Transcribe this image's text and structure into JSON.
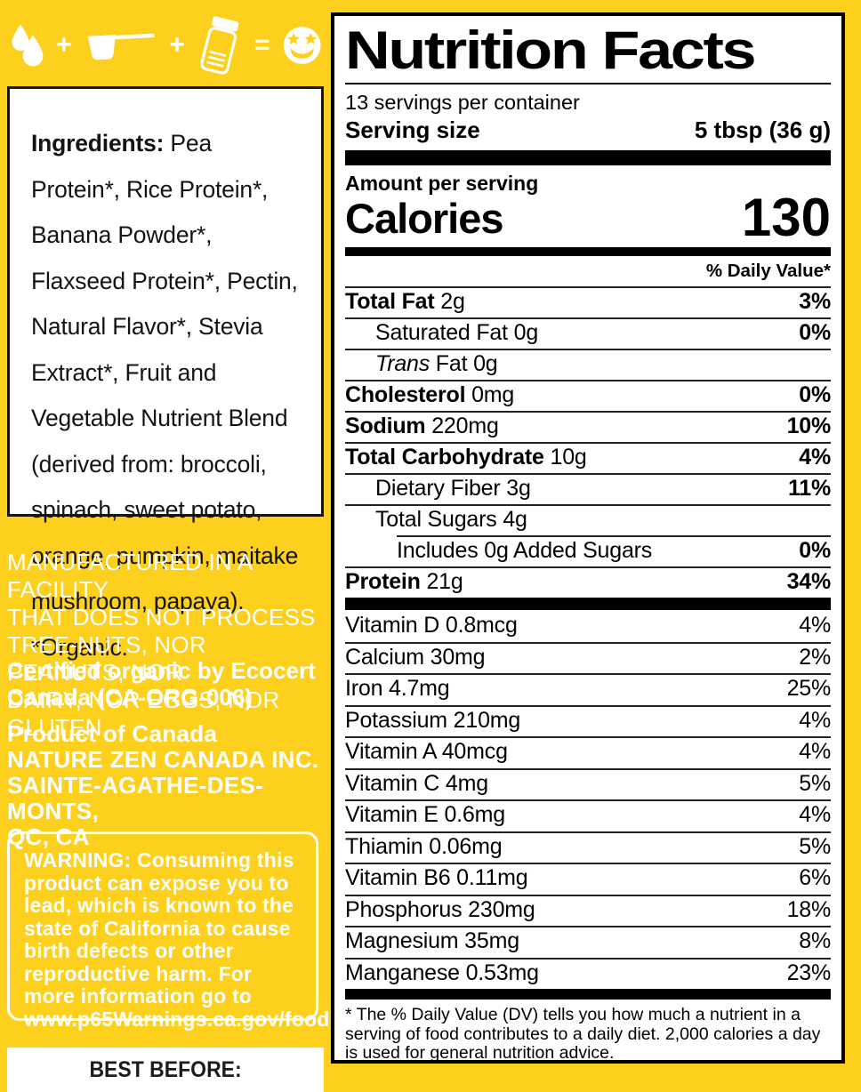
{
  "colors": {
    "background_yellow": "#FCD01C",
    "panel_background": "#FFFFFF",
    "panel_border": "#000000",
    "left_text_white": "#FFFFFF",
    "ingredients_text": "#141414"
  },
  "left": {
    "icon_equation": {
      "icons": [
        "water-drops-icon",
        "scoop-icon",
        "shaker-bottle-icon",
        "star-struck-emoji-icon"
      ],
      "plus": "+",
      "equals": "="
    },
    "ingredients_label": "Ingredients:",
    "ingredients_body": " Pea Protein*, Rice Protein*, Banana Powder*, Flaxseed Protein*, Pectin, Natural Flavor*, Stevia Extract*, Fruit and Vegetable Nutrient Blend (derived from: broccoli, spinach, sweet potato, orange, pumpkin, maitake mushroom, papaya). *Organic.",
    "facility_notice": "MANUFACTURED IN A FACILITY\nTHAT DOES NOT PROCESS\nTREE-NUTS, NOR PEANUTS, NOR\nDAIRY, NOR EGGS, NOR GLUTEN.",
    "certified": "Certified organic by Ecocert\nCanada (CA-ORG-006)",
    "product_block": "Product of Canada\nNATURE ZEN CANADA INC.\nSAINTE-AGATHE-DES-MONTS,\nQC, CA",
    "warning_label": "WARNING:",
    "warning_body": " Consuming this product can expose you to lead, which is known to the state of California to cause birth defects or other reproductive harm. For more information go to www.p65Warnings.ca.gov/food",
    "best_before": "BEST BEFORE:"
  },
  "nutrition": {
    "title": "Nutrition Facts",
    "servings_per_container": "13 servings per container",
    "serving_size_label": "Serving size",
    "serving_size_value": "5 tbsp (36 g)",
    "amount_per_serving": "Amount per serving",
    "calories_label": "Calories",
    "calories_value": "130",
    "daily_value_header": "% Daily Value*",
    "main_rows": [
      {
        "name": "Total Fat",
        "amount": "2g",
        "bold": true,
        "indent": 0,
        "percent": "3%",
        "percent_bold": true
      },
      {
        "name": "Saturated Fat",
        "amount": "0g",
        "bold": false,
        "indent": 1,
        "percent": "0%",
        "percent_bold": true
      },
      {
        "name": "Trans",
        "amount": "Fat 0g",
        "bold": false,
        "italic": true,
        "indent": 1,
        "percent": null
      },
      {
        "name": "Cholesterol",
        "amount": "0mg",
        "bold": true,
        "indent": 0,
        "percent": "0%",
        "percent_bold": true
      },
      {
        "name": "Sodium",
        "amount": "220mg",
        "bold": true,
        "indent": 0,
        "percent": "10%",
        "percent_bold": true
      },
      {
        "name": "Total Carbohydrate",
        "amount": "10g",
        "bold": true,
        "indent": 0,
        "percent": "4%",
        "percent_bold": true
      },
      {
        "name": "Dietary Fiber",
        "amount": "3g",
        "bold": false,
        "indent": 1,
        "percent": "11%",
        "percent_bold": true
      },
      {
        "name": "Total Sugars",
        "amount": "4g",
        "bold": false,
        "indent": 1,
        "percent": null
      },
      {
        "name": "Includes 0g Added Sugars",
        "amount": "",
        "bold": false,
        "indent": 2,
        "percent": "0%",
        "percent_bold": true,
        "sep_indented": true
      },
      {
        "name": "Protein",
        "amount": "21g",
        "bold": true,
        "indent": 0,
        "percent": "34%",
        "percent_bold": true
      }
    ],
    "micronutrients": [
      {
        "name": "Vitamin D",
        "amount": "0.8mcg",
        "percent": "4%"
      },
      {
        "name": "Calcium",
        "amount": "30mg",
        "percent": "2%"
      },
      {
        "name": "Iron",
        "amount": "4.7mg",
        "percent": "25%"
      },
      {
        "name": "Potassium",
        "amount": "210mg",
        "percent": "4%"
      },
      {
        "name": "Vitamin A",
        "amount": "40mcg",
        "percent": "4%"
      },
      {
        "name": "Vitamin C",
        "amount": "4mg",
        "percent": "5%"
      },
      {
        "name": "Vitamin E",
        "amount": "0.6mg",
        "percent": "4%"
      },
      {
        "name": "Thiamin",
        "amount": "0.06mg",
        "percent": "5%"
      },
      {
        "name": "Vitamin B6",
        "amount": "0.11mg",
        "percent": "6%"
      },
      {
        "name": "Phosphorus",
        "amount": "230mg",
        "percent": "18%"
      },
      {
        "name": "Magnesium",
        "amount": "35mg",
        "percent": "8%"
      },
      {
        "name": "Manganese",
        "amount": "0.53mg",
        "percent": "23%"
      }
    ],
    "footnote": "* The % Daily Value (DV) tells you how much a nutrient in a serving of food contributes to a daily diet. 2,000 calories a day is used for general nutrition advice."
  }
}
